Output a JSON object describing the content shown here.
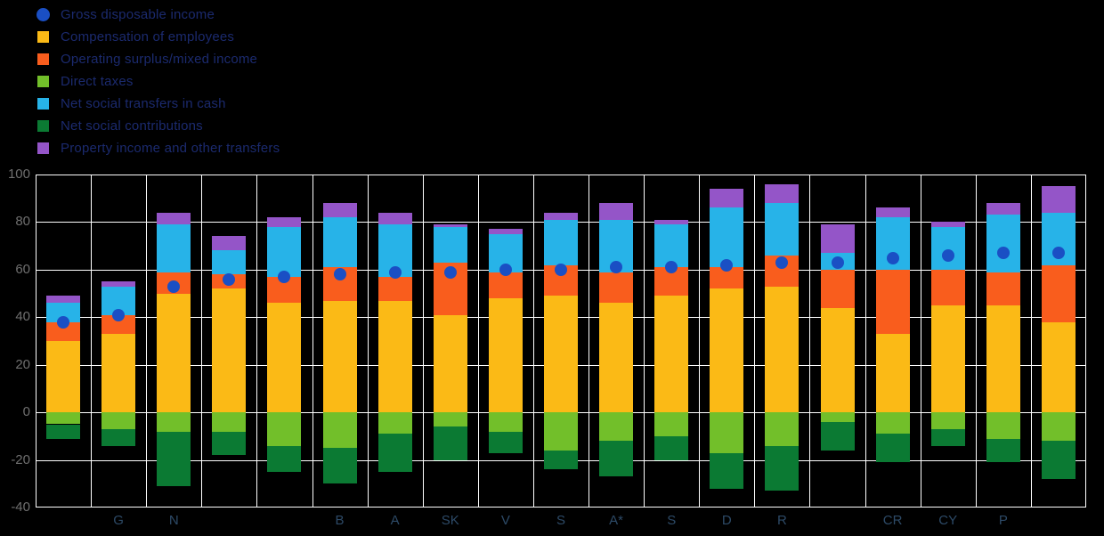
{
  "colors": {
    "background": "#000000",
    "grid": "#ffffff",
    "dot_blue": "#1a4fc4",
    "gold": "#fbba16",
    "orange": "#f95d1d",
    "light_green": "#72bf2a",
    "cyan": "#27b3e8",
    "dark_green": "#0b7a33",
    "purple": "#9455c8",
    "legend_text": "#1b2a6e",
    "y_label_text": "#6f6f6f",
    "x_label_text": "#2d4a67"
  },
  "legend": {
    "items": [
      {
        "label": "Gross disposable income",
        "marker": "circle",
        "color": "#1a4fc4"
      },
      {
        "label": "Compensation of employees",
        "marker": "square",
        "color": "#fbba16"
      },
      {
        "label": "Operating surplus/mixed income",
        "marker": "square",
        "color": "#f95d1d"
      },
      {
        "label": "Direct taxes",
        "marker": "square",
        "color": "#72bf2a"
      },
      {
        "label": "Net social transfers in cash",
        "marker": "square",
        "color": "#27b3e8"
      },
      {
        "label": "Net social contributions",
        "marker": "square",
        "color": "#0b7a33"
      },
      {
        "label": "Property income and other transfers",
        "marker": "square",
        "color": "#9455c8"
      }
    ]
  },
  "axis": {
    "y_ticks": [
      100,
      80,
      60,
      40,
      20,
      0,
      -20,
      -40
    ],
    "y_tick_labels": [
      "100",
      "80",
      "60",
      "40",
      "20",
      "0",
      "-20",
      "-40"
    ]
  },
  "chart_data": {
    "type": "bar",
    "subtype": "stacked-bars-with-point-overlay",
    "title": "",
    "xlabel": "",
    "ylabel": "",
    "ylim": [
      -40,
      100
    ],
    "grid": true,
    "legend_position": "top-left",
    "categories": [
      "",
      "G",
      "N",
      "",
      "",
      "B",
      "A",
      "SK",
      "V",
      "S",
      "A*",
      "S",
      "D",
      "R",
      "",
      "CR",
      "CY",
      "P",
      ""
    ],
    "series": [
      {
        "name": "Compensation of employees",
        "color": "#fbba16",
        "values": [
          30,
          33,
          50,
          52,
          46,
          47,
          47,
          41,
          48,
          49,
          46,
          49,
          52,
          53,
          44,
          33,
          45,
          45,
          38
        ]
      },
      {
        "name": "Operating surplus/mixed income",
        "color": "#f95d1d",
        "values": [
          8,
          8,
          9,
          6,
          11,
          14,
          10,
          22,
          11,
          13,
          13,
          12,
          9,
          13,
          16,
          27,
          15,
          14,
          24
        ]
      },
      {
        "name": "Net social transfers in cash",
        "color": "#27b3e8",
        "values": [
          8,
          12,
          20,
          10,
          21,
          21,
          22,
          15,
          16,
          19,
          22,
          18,
          25,
          22,
          7,
          22,
          18,
          24,
          22
        ]
      },
      {
        "name": "Property income and other transfers",
        "color": "#9455c8",
        "values": [
          3,
          2,
          5,
          6,
          4,
          6,
          5,
          1,
          2,
          3,
          7,
          2,
          8,
          8,
          12,
          4,
          2,
          5,
          11
        ]
      },
      {
        "name": "Direct taxes",
        "color": "#72bf2a",
        "values": [
          -5,
          -7,
          -8,
          -8,
          -14,
          -15,
          -9,
          -6,
          -8,
          -16,
          -12,
          -10,
          -17,
          -14,
          -4,
          -9,
          -7,
          -11,
          -12
        ]
      },
      {
        "name": "Net social contributions",
        "color": "#0b7a33",
        "values": [
          -6,
          -7,
          -23,
          -10,
          -11,
          -15,
          -16,
          -14,
          -9,
          -8,
          -15,
          -10,
          -15,
          -19,
          -12,
          -12,
          -7,
          -10,
          -16
        ]
      }
    ],
    "positive_stack_order": [
      "Compensation of employees",
      "Operating surplus/mixed income",
      "Net social transfers in cash",
      "Property income and other transfers"
    ],
    "negative_stack_order": [
      "Direct taxes",
      "Net social contributions"
    ],
    "point_series": {
      "name": "Gross disposable income",
      "color": "#1a4fc4",
      "values": [
        38,
        41,
        53,
        56,
        57,
        58,
        59,
        59,
        60,
        60,
        61,
        61,
        62,
        63,
        63,
        65,
        66,
        67,
        67
      ]
    }
  }
}
